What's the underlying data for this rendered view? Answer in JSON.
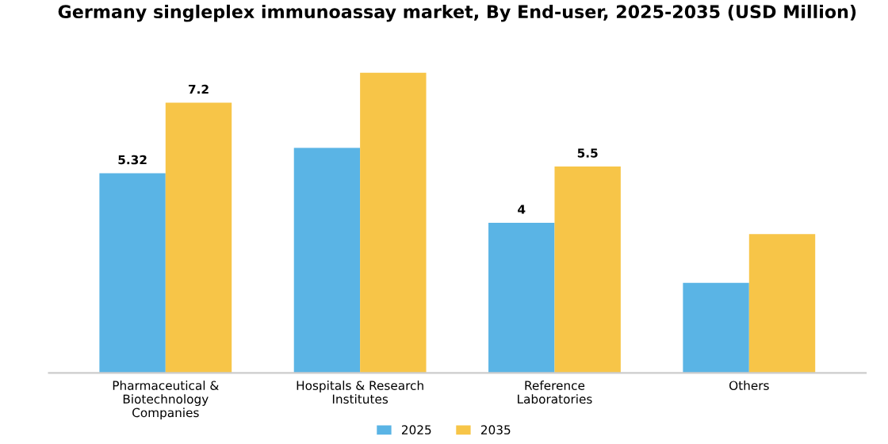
{
  "chart_data": {
    "type": "bar",
    "title": "Germany singleplex immunoassay market, By End-user, 2025-2035 (USD Million)",
    "categories": [
      "Pharmaceutical &\nBiotechnology\nCompanies",
      "Hospitals & Research\nInstitutes",
      "Reference\nLaboratories",
      "Others"
    ],
    "series": [
      {
        "name": "2025",
        "color": "#5ab4e5",
        "values": [
          5.32,
          6.0,
          4,
          2.4
        ],
        "value_labels": [
          "5.32",
          null,
          "4",
          null
        ]
      },
      {
        "name": "2035",
        "color": "#f7c548",
        "values": [
          7.2,
          8.0,
          5.5,
          3.7
        ],
        "value_labels": [
          "7.2",
          null,
          "5.5",
          null
        ]
      }
    ],
    "legend": "bottom",
    "grid": false
  }
}
